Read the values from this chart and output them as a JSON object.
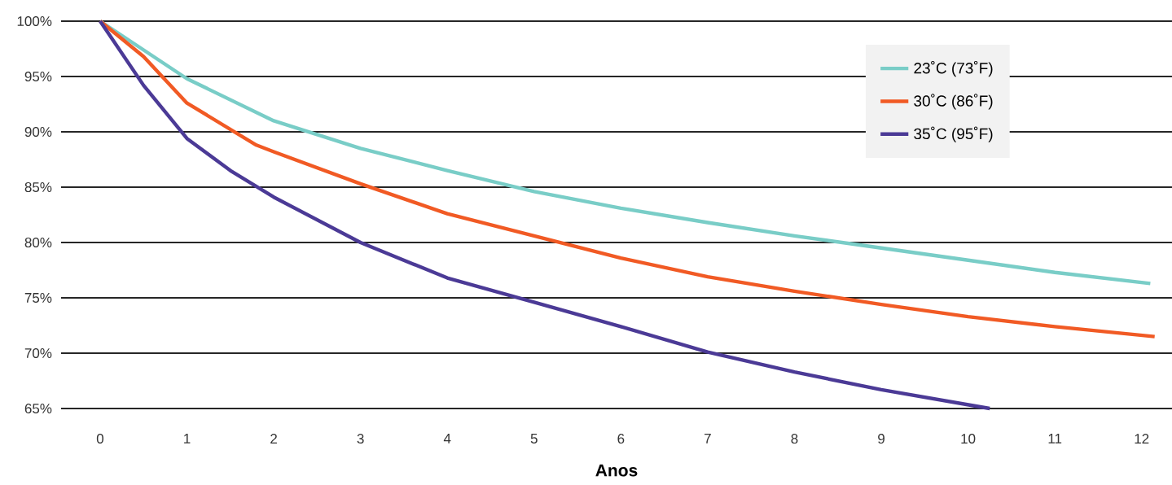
{
  "chart_data": {
    "type": "line",
    "xlabel": "Anos",
    "series": [
      {
        "name": "23˚C (73˚F)",
        "color": "#79cdc7",
        "x": [
          0,
          1,
          2,
          3,
          4,
          5,
          6,
          7,
          8,
          9,
          10,
          11,
          12.1
        ],
        "values": [
          100,
          94.8,
          91.0,
          88.5,
          86.5,
          84.6,
          83.1,
          81.8,
          80.6,
          79.5,
          78.4,
          77.3,
          76.3
        ]
      },
      {
        "name": "30˚C (86˚F)",
        "color": "#f15a24",
        "x": [
          0,
          0.5,
          1,
          1.8,
          2,
          3,
          4,
          5,
          6,
          7,
          8,
          9,
          10,
          11,
          12.15
        ],
        "values": [
          100,
          96.8,
          92.6,
          88.8,
          88.2,
          85.3,
          82.6,
          80.6,
          78.6,
          76.9,
          75.6,
          74.4,
          73.3,
          72.4,
          71.5
        ]
      },
      {
        "name": "35˚C (95˚F)",
        "color": "#4b3a96",
        "x": [
          0,
          0.5,
          1,
          1.5,
          2,
          3,
          4,
          5,
          6,
          7,
          8,
          9,
          10.25
        ],
        "values": [
          100,
          94.2,
          89.4,
          86.5,
          84.1,
          80.0,
          76.8,
          74.6,
          72.4,
          70.1,
          68.3,
          66.7,
          65
        ]
      }
    ],
    "xlim": [
      -0.45,
      12.35
    ],
    "ylim": [
      65,
      100
    ],
    "xticks": [
      0,
      1,
      2,
      3,
      4,
      5,
      6,
      7,
      8,
      9,
      10,
      11,
      12
    ],
    "yticks": [
      {
        "value": 65,
        "label": "65%"
      },
      {
        "value": 70,
        "label": "70%"
      },
      {
        "value": 75,
        "label": "75%"
      },
      {
        "value": 80,
        "label": "80%"
      },
      {
        "value": 85,
        "label": "85%"
      },
      {
        "value": 90,
        "label": "90%"
      },
      {
        "value": 95,
        "label": "95%"
      },
      {
        "value": 100,
        "label": "100%"
      }
    ],
    "grid": "y",
    "legend": "top right",
    "marker": "none",
    "line_style": "solid"
  }
}
